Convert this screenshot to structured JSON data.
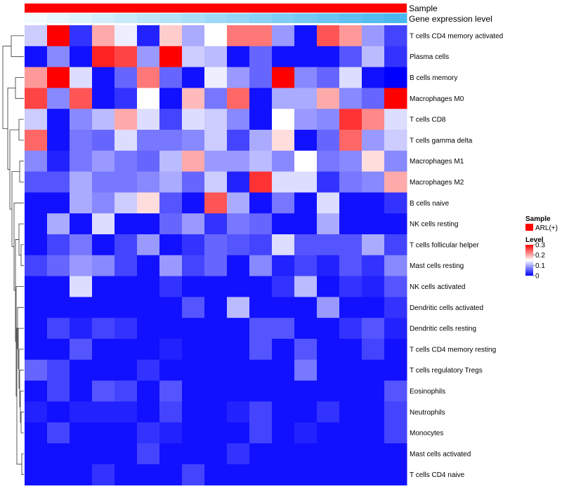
{
  "chart_data": {
    "type": "heatmap",
    "title": "",
    "annotation_tracks": [
      {
        "name": "Sample",
        "label": "Sample",
        "kind": "categorical",
        "color": "#ff0000"
      },
      {
        "name": "Gene expression level",
        "label": "Gene expression level",
        "kind": "gradient",
        "color_low": "#f2fbfe",
        "color_high": "#4ab8ef"
      }
    ],
    "rows": [
      "T cells CD4 memory activated",
      "Plasma cells",
      "B cells memory",
      "Macrophages M0",
      "T cells CD8",
      "T cells gamma delta",
      "Macrophages M1",
      "Macrophages M2",
      "B cells naive",
      "NK cells resting",
      "T cells follicular helper",
      "Mast cells resting",
      "NK cells activated",
      "Dendritic cells activated",
      "Dendritic cells resting",
      "T cells CD4 memory resting",
      "T cells regulatory  Tregs",
      "Eosinophils",
      "Neutrophils",
      "Monocytes",
      "Mast cells activated",
      "T cells CD4 naive"
    ],
    "n_columns": 17,
    "values": [
      [
        0.12,
        0.3,
        0.03,
        0.2,
        0.14,
        0.02,
        0.18,
        0.1,
        0.15,
        0.23,
        0.23,
        0.09,
        0.01,
        0.25,
        0.21,
        0.09,
        0.04
      ],
      [
        0.01,
        0.08,
        0.01,
        0.28,
        0.26,
        0.09,
        0.3,
        0.12,
        0.11,
        0.01,
        0.06,
        0.01,
        0.01,
        0.01,
        0.05,
        0.11,
        0.03
      ],
      [
        0.21,
        0.3,
        0.13,
        0.01,
        0.06,
        0.23,
        0.06,
        0.01,
        0.14,
        0.09,
        0.06,
        0.3,
        0.08,
        0.06,
        0.13,
        0.01,
        0.0
      ],
      [
        0.26,
        0.08,
        0.25,
        0.01,
        0.03,
        0.15,
        0.01,
        0.19,
        0.07,
        0.24,
        0.01,
        0.1,
        0.1,
        0.2,
        0.08,
        0.06,
        0.3
      ],
      [
        0.12,
        0.01,
        0.08,
        0.11,
        0.2,
        0.13,
        0.04,
        0.13,
        0.12,
        0.08,
        0.01,
        0.15,
        0.09,
        0.08,
        0.27,
        0.22,
        0.13
      ],
      [
        0.24,
        0.01,
        0.07,
        0.06,
        0.13,
        0.07,
        0.07,
        0.08,
        0.12,
        0.04,
        0.1,
        0.17,
        0.01,
        0.06,
        0.24,
        0.09,
        0.12
      ],
      [
        0.08,
        0.02,
        0.07,
        0.09,
        0.07,
        0.06,
        0.11,
        0.2,
        0.09,
        0.09,
        0.11,
        0.08,
        0.15,
        0.07,
        0.08,
        0.17,
        0.08
      ],
      [
        0.05,
        0.05,
        0.1,
        0.07,
        0.07,
        0.08,
        0.1,
        0.06,
        0.12,
        0.02,
        0.27,
        0.13,
        0.13,
        0.03,
        0.07,
        0.08,
        0.2
      ],
      [
        0.01,
        0.01,
        0.1,
        0.08,
        0.12,
        0.17,
        0.05,
        0.01,
        0.25,
        0.1,
        0.01,
        0.07,
        0.01,
        0.13,
        0.01,
        0.01,
        0.03
      ],
      [
        0.01,
        0.1,
        0.01,
        0.13,
        0.01,
        0.01,
        0.06,
        0.09,
        0.03,
        0.07,
        0.06,
        0.01,
        0.01,
        0.1,
        0.01,
        0.01,
        0.01
      ],
      [
        0.01,
        0.04,
        0.07,
        0.01,
        0.04,
        0.09,
        0.01,
        0.03,
        0.06,
        0.05,
        0.04,
        0.13,
        0.05,
        0.05,
        0.05,
        0.1,
        0.04
      ],
      [
        0.04,
        0.06,
        0.09,
        0.08,
        0.04,
        0.01,
        0.09,
        0.04,
        0.06,
        0.01,
        0.08,
        0.02,
        0.04,
        0.02,
        0.05,
        0.03,
        0.08
      ],
      [
        0.01,
        0.01,
        0.13,
        0.01,
        0.01,
        0.01,
        0.03,
        0.01,
        0.01,
        0.01,
        0.01,
        0.03,
        0.11,
        0.01,
        0.03,
        0.02,
        0.05
      ],
      [
        0.01,
        0.01,
        0.01,
        0.01,
        0.01,
        0.01,
        0.01,
        0.05,
        0.01,
        0.11,
        0.01,
        0.01,
        0.01,
        0.09,
        0.01,
        0.01,
        0.03
      ],
      [
        0.01,
        0.04,
        0.02,
        0.04,
        0.03,
        0.01,
        0.01,
        0.01,
        0.01,
        0.01,
        0.05,
        0.05,
        0.01,
        0.01,
        0.03,
        0.05,
        0.02
      ],
      [
        0.01,
        0.01,
        0.05,
        0.01,
        0.01,
        0.01,
        0.02,
        0.01,
        0.01,
        0.01,
        0.05,
        0.01,
        0.05,
        0.01,
        0.01,
        0.04,
        0.01
      ],
      [
        0.06,
        0.04,
        0.01,
        0.01,
        0.01,
        0.03,
        0.01,
        0.01,
        0.01,
        0.01,
        0.01,
        0.01,
        0.07,
        0.01,
        0.01,
        0.01,
        0.01
      ],
      [
        0.01,
        0.04,
        0.01,
        0.05,
        0.04,
        0.01,
        0.05,
        0.01,
        0.01,
        0.01,
        0.01,
        0.01,
        0.01,
        0.01,
        0.01,
        0.01,
        0.05
      ],
      [
        0.02,
        0.01,
        0.02,
        0.02,
        0.02,
        0.01,
        0.04,
        0.01,
        0.01,
        0.02,
        0.04,
        0.01,
        0.01,
        0.03,
        0.01,
        0.01,
        0.04
      ],
      [
        0.01,
        0.04,
        0.01,
        0.01,
        0.01,
        0.03,
        0.02,
        0.01,
        0.01,
        0.01,
        0.04,
        0.01,
        0.02,
        0.01,
        0.01,
        0.01,
        0.04
      ],
      [
        0.01,
        0.01,
        0.01,
        0.01,
        0.01,
        0.04,
        0.01,
        0.01,
        0.01,
        0.03,
        0.01,
        0.01,
        0.01,
        0.01,
        0.01,
        0.01,
        0.01
      ],
      [
        0.01,
        0.01,
        0.01,
        0.03,
        0.01,
        0.01,
        0.01,
        0.04,
        0.01,
        0.01,
        0.01,
        0.01,
        0.01,
        0.01,
        0.01,
        0.01,
        0.01
      ]
    ],
    "color_scale": {
      "low": "#0000ff",
      "mid": "#ffffff",
      "high": "#ff0000",
      "range": [
        0,
        0.3
      ]
    },
    "legend": {
      "sample_title": "Sample",
      "sample_entry": "ARL(+)",
      "level_title": "Level",
      "level_ticks": [
        {
          "value": 0.3,
          "label": "0.3"
        },
        {
          "value": 0.2,
          "label": "0.2"
        },
        {
          "value": 0.1,
          "label": "0.1"
        },
        {
          "value": 0.0,
          "label": "0"
        }
      ]
    },
    "dendrogram": "left (rows clustered)",
    "legend_position": "right"
  }
}
